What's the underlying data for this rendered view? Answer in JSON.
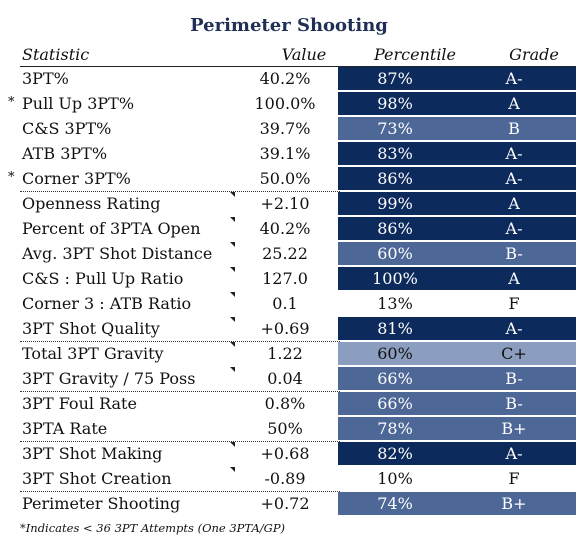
{
  "title": "Perimeter Shooting",
  "headers": {
    "statistic": "Statistic",
    "value": "Value",
    "percentile": "Percentile",
    "grade": "Grade"
  },
  "rows": [
    {
      "star": "",
      "stat": "3PT%",
      "value": "40.2%",
      "percentile": "87%",
      "grade": "A-",
      "color": "#0d2a5c",
      "tick": false,
      "sep": false
    },
    {
      "star": "*",
      "stat": "Pull Up 3PT%",
      "value": "100.0%",
      "percentile": "98%",
      "grade": "A",
      "color": "#0d2a5c",
      "tick": false,
      "sep": false
    },
    {
      "star": "",
      "stat": "C&S 3PT%",
      "value": "39.7%",
      "percentile": "73%",
      "grade": "B",
      "color": "#4d6796",
      "tick": false,
      "sep": false
    },
    {
      "star": "",
      "stat": "ATB 3PT%",
      "value": "39.1%",
      "percentile": "83%",
      "grade": "A-",
      "color": "#0d2a5c",
      "tick": false,
      "sep": false
    },
    {
      "star": "*",
      "stat": "Corner 3PT%",
      "value": "50.0%",
      "percentile": "86%",
      "grade": "A-",
      "color": "#0d2a5c",
      "tick": false,
      "sep": false
    },
    {
      "star": "",
      "stat": "Openness Rating",
      "value": "+2.10",
      "percentile": "99%",
      "grade": "A",
      "color": "#0d2a5c",
      "tick": true,
      "sep": true
    },
    {
      "star": "",
      "stat": "Percent of 3PTA Open",
      "value": "40.2%",
      "percentile": "86%",
      "grade": "A-",
      "color": "#0d2a5c",
      "tick": true,
      "sep": false
    },
    {
      "star": "",
      "stat": "Avg. 3PT Shot Distance",
      "value": "25.22",
      "percentile": "60%",
      "grade": "B-",
      "color": "#4d6796",
      "tick": true,
      "sep": false
    },
    {
      "star": "",
      "stat": "C&S : Pull Up Ratio",
      "value": "127.0",
      "percentile": "100%",
      "grade": "A",
      "color": "#0d2a5c",
      "tick": true,
      "sep": false
    },
    {
      "star": "",
      "stat": "Corner 3 : ATB Ratio",
      "value": "0.1",
      "percentile": "13%",
      "grade": "F",
      "color": "#ffffff",
      "tick": true,
      "sep": false,
      "light": true
    },
    {
      "star": "",
      "stat": "3PT Shot Quality",
      "value": "+0.69",
      "percentile": "81%",
      "grade": "A-",
      "color": "#0d2a5c",
      "tick": true,
      "sep": false
    },
    {
      "star": "",
      "stat": "Total 3PT Gravity",
      "value": "1.22",
      "percentile": "60%",
      "grade": "C+",
      "color": "#8c9ebf",
      "tick": true,
      "sep": true,
      "light": true
    },
    {
      "star": "",
      "stat": "3PT Gravity / 75 Poss",
      "value": "0.04",
      "percentile": "66%",
      "grade": "B-",
      "color": "#4d6796",
      "tick": true,
      "sep": false
    },
    {
      "star": "",
      "stat": "3PT Foul Rate",
      "value": "0.8%",
      "percentile": "66%",
      "grade": "B-",
      "color": "#4d6796",
      "tick": false,
      "sep": true
    },
    {
      "star": "",
      "stat": "3PTA Rate",
      "value": "50%",
      "percentile": "78%",
      "grade": "B+",
      "color": "#4d6796",
      "tick": false,
      "sep": false
    },
    {
      "star": "",
      "stat": "3PT Shot Making",
      "value": "+0.68",
      "percentile": "82%",
      "grade": "A-",
      "color": "#0d2a5c",
      "tick": true,
      "sep": true
    },
    {
      "star": "",
      "stat": "3PT Shot Creation",
      "value": "-0.89",
      "percentile": "10%",
      "grade": "F",
      "color": "#ffffff",
      "tick": true,
      "sep": false,
      "light": true
    },
    {
      "star": "",
      "stat": "Perimeter Shooting",
      "value": "+0.72",
      "percentile": "74%",
      "grade": "B+",
      "color": "#4d6796",
      "tick": false,
      "sep": true
    }
  ],
  "footnote": "*Indicates < 36 3PT Attempts (One 3PTA/GP)"
}
